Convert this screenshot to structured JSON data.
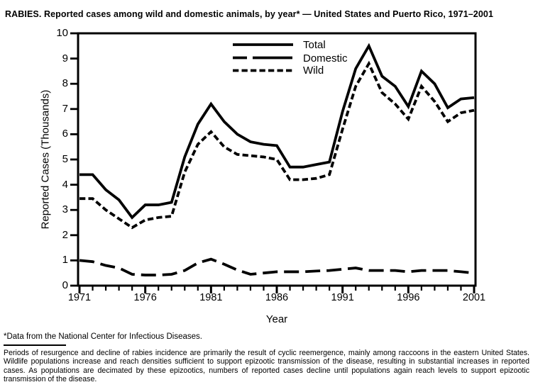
{
  "title": "RABIES. Reported cases among wild and domestic animals, by year* — United States and Puerto Rico, 1971–2001",
  "footnote": "*Data from the National Center for Infectious Diseases.",
  "description": "Periods of resurgence and decline of rabies incidence are primarily the result of cyclic reemergence, mainly among raccoons in the eastern United States. Wildlife populations increase and reach densities sufficient to support epizootic transmission of the disease, resulting in substantial increases in reported cases. As populations are decimated by these epizootics, numbers of reported cases decline until populations again reach levels to support epizootic transmission of the disease.",
  "chart_data": {
    "type": "line",
    "x": [
      1971,
      1972,
      1973,
      1974,
      1975,
      1976,
      1977,
      1978,
      1979,
      1980,
      1981,
      1982,
      1983,
      1984,
      1985,
      1986,
      1987,
      1988,
      1989,
      1990,
      1991,
      1992,
      1993,
      1994,
      1995,
      1996,
      1997,
      1998,
      1999,
      2000,
      2001
    ],
    "series": [
      {
        "name": "Total",
        "line_style": "solid",
        "values": [
          4.4,
          4.4,
          3.8,
          3.4,
          2.7,
          3.2,
          3.2,
          3.3,
          5.1,
          6.4,
          7.2,
          6.5,
          6.0,
          5.7,
          5.6,
          5.55,
          4.7,
          4.7,
          4.8,
          4.9,
          6.9,
          8.6,
          9.5,
          8.3,
          7.9,
          7.1,
          8.5,
          8.0,
          7.05,
          7.4,
          7.45
        ]
      },
      {
        "name": "Domestic",
        "line_style": "long-dash",
        "values": [
          1.0,
          0.95,
          0.8,
          0.7,
          0.45,
          0.42,
          0.42,
          0.45,
          0.6,
          0.9,
          1.05,
          0.85,
          0.62,
          0.45,
          0.5,
          0.55,
          0.55,
          0.55,
          0.58,
          0.6,
          0.65,
          0.7,
          0.6,
          0.6,
          0.6,
          0.55,
          0.6,
          0.6,
          0.6,
          0.55,
          0.5
        ]
      },
      {
        "name": "Wild",
        "line_style": "short-dash",
        "values": [
          3.45,
          3.45,
          3.0,
          2.65,
          2.3,
          2.6,
          2.7,
          2.75,
          4.5,
          5.6,
          6.1,
          5.5,
          5.2,
          5.15,
          5.1,
          5.0,
          4.2,
          4.2,
          4.25,
          4.4,
          6.2,
          7.9,
          8.8,
          7.65,
          7.2,
          6.6,
          7.9,
          7.3,
          6.5,
          6.85,
          6.95
        ]
      }
    ],
    "xlabel": "Year",
    "ylabel": "Reported Cases (Thousands)",
    "ylim": [
      0,
      10
    ],
    "yticks": [
      0,
      1,
      2,
      3,
      4,
      5,
      6,
      7,
      8,
      9,
      10
    ],
    "xticks_major": [
      1971,
      1976,
      1981,
      1986,
      1991,
      1996,
      2001
    ],
    "legend_position": "top-center",
    "grid": false,
    "line_color": "#000000",
    "background_color": "#ffffff"
  }
}
